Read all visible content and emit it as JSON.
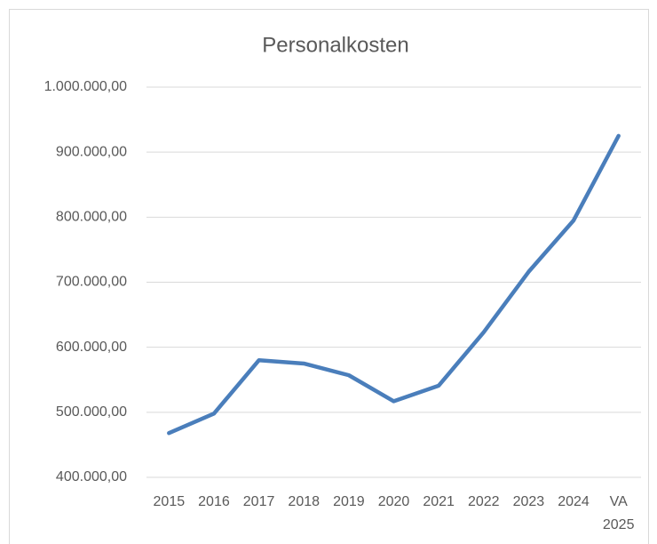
{
  "chart_data": {
    "type": "line",
    "title": "Personalkosten",
    "categories": [
      "2015",
      "2016",
      "2017",
      "2018",
      "2019",
      "2020",
      "2021",
      "2022",
      "2023",
      "2024",
      "VA 2025"
    ],
    "values": [
      468000,
      498000,
      580000,
      575000,
      557000,
      517000,
      541000,
      623000,
      716000,
      795000,
      925000
    ],
    "color": "#4a7ebb",
    "ylim": [
      400000,
      1000000
    ],
    "yticks": [
      {
        "value": 400000,
        "label": "400.000,00"
      },
      {
        "value": 500000,
        "label": "500.000,00"
      },
      {
        "value": 600000,
        "label": "600.000,00"
      },
      {
        "value": 700000,
        "label": "700.000,00"
      },
      {
        "value": 800000,
        "label": "800.000,00"
      },
      {
        "value": 900000,
        "label": "900.000,00"
      },
      {
        "value": 1000000,
        "label": "1.000.000,00"
      }
    ],
    "grid": true
  }
}
